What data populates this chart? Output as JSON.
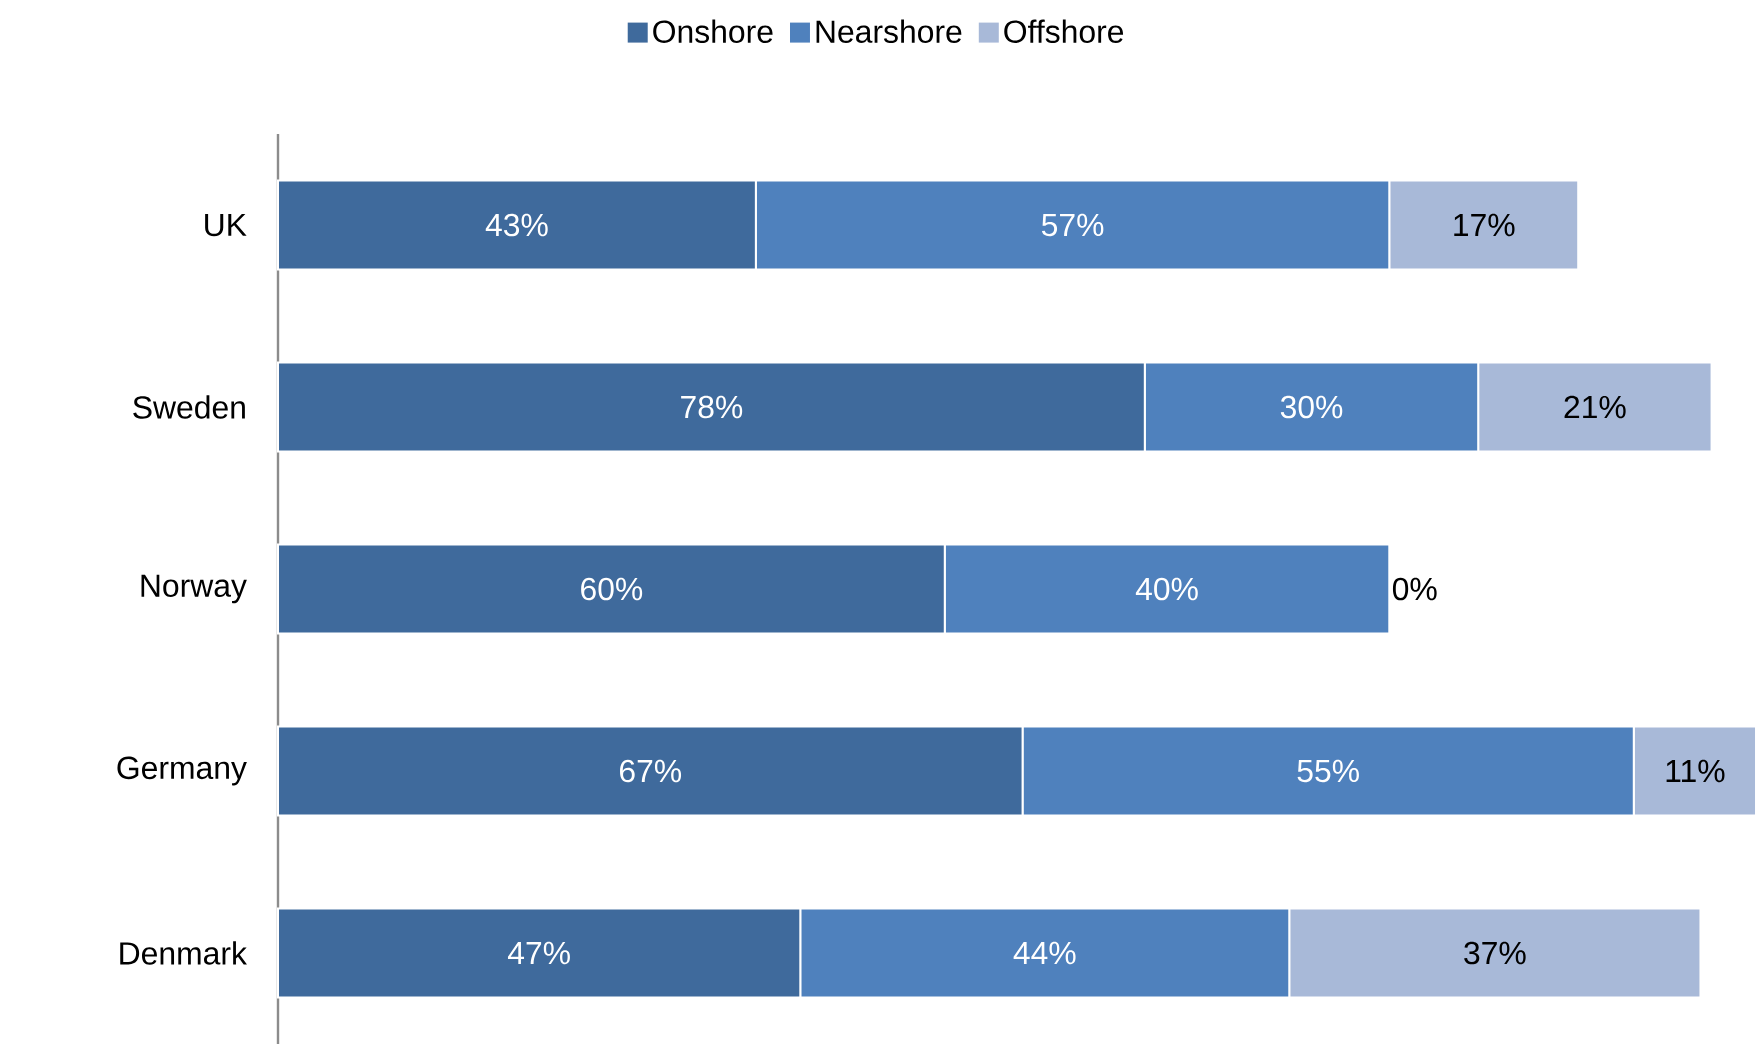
{
  "chart_data": {
    "type": "bar",
    "orientation": "horizontal",
    "stacked": true,
    "categories": [
      "UK",
      "Sweden",
      "Norway",
      "Germany",
      "Denmark"
    ],
    "series": [
      {
        "name": "Onshore",
        "color": "#3f6a9c",
        "values": [
          43,
          78,
          60,
          67,
          47
        ],
        "value_labels": [
          "43%",
          "78%",
          "60%",
          "67%",
          "47%"
        ]
      },
      {
        "name": "Nearshore",
        "color": "#4f81bd",
        "values": [
          57,
          30,
          40,
          55,
          44
        ],
        "value_labels": [
          "57%",
          "30%",
          "40%",
          "55%",
          "44%"
        ]
      },
      {
        "name": "Offshore",
        "color": "#a8b9d8",
        "values": [
          17,
          21,
          0,
          11,
          37
        ],
        "value_labels": [
          "17%",
          "21%",
          "0%",
          "11%",
          "37%"
        ]
      }
    ],
    "xlim": [
      0,
      133
    ],
    "tick_labels": "y",
    "legend": "top"
  }
}
